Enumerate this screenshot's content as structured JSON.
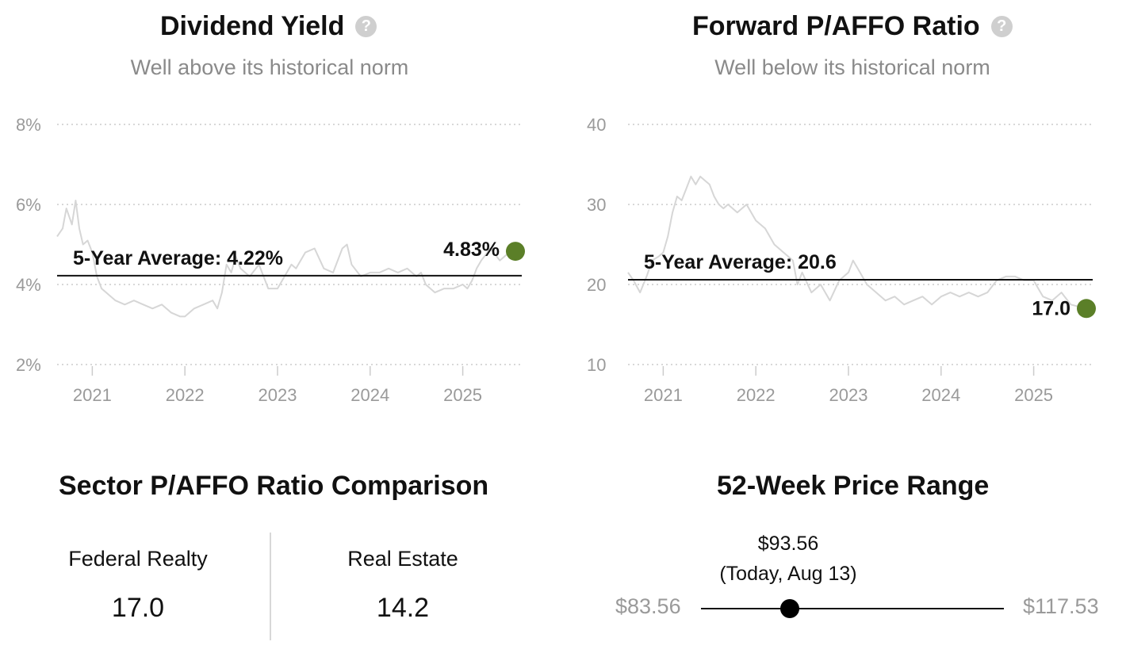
{
  "dividend_panel": {
    "title": "Dividend Yield",
    "subtitle": "Well above its historical norm",
    "help_icon": "question-circle-icon"
  },
  "paffo_panel": {
    "title": "Forward P/AFFO Ratio",
    "subtitle": "Well below its historical norm",
    "help_icon": "question-circle-icon"
  },
  "chart_data": [
    {
      "type": "line",
      "title": "Dividend Yield",
      "y_ticks": [
        "2%",
        "4%",
        "6%",
        "8%"
      ],
      "y_tick_values": [
        2,
        4,
        6,
        8
      ],
      "ylim": [
        2,
        8
      ],
      "x_ticks": [
        "2021",
        "2022",
        "2023",
        "2024",
        "2025"
      ],
      "x_tick_values": [
        2021,
        2022,
        2023,
        2024,
        2025
      ],
      "xlim": [
        2020.62,
        2025.62
      ],
      "grid": true,
      "line_color": "#d6d6d6",
      "avg_color": "#111111",
      "point_color": "#5b7f28",
      "average": {
        "label": "5-Year Average: 4.22%",
        "value": 4.22
      },
      "current": {
        "label": "4.83%",
        "x": 2025.62,
        "value": 4.83
      },
      "series": [
        {
          "x": [
            2020.62,
            2020.68,
            2020.72,
            2020.78,
            2020.82,
            2020.86,
            2020.9,
            2020.95,
            2021.0,
            2021.05,
            2021.1,
            2021.15,
            2021.25,
            2021.35,
            2021.45,
            2021.55,
            2021.65,
            2021.75,
            2021.85,
            2021.95,
            2022.0,
            2022.1,
            2022.2,
            2022.3,
            2022.35,
            2022.4,
            2022.45,
            2022.5,
            2022.55,
            2022.6,
            2022.7,
            2022.8,
            2022.9,
            2023.0,
            2023.1,
            2023.15,
            2023.2,
            2023.3,
            2023.4,
            2023.5,
            2023.6,
            2023.7,
            2023.75,
            2023.8,
            2023.9,
            2024.0,
            2024.1,
            2024.2,
            2024.3,
            2024.4,
            2024.5,
            2024.55,
            2024.6,
            2024.7,
            2024.8,
            2024.9,
            2025.0,
            2025.05,
            2025.1,
            2025.15,
            2025.2,
            2025.3,
            2025.4,
            2025.5,
            2025.62
          ],
          "values": [
            5.2,
            5.4,
            5.9,
            5.5,
            6.1,
            5.4,
            5.0,
            5.1,
            4.8,
            4.2,
            3.9,
            3.8,
            3.6,
            3.5,
            3.6,
            3.5,
            3.4,
            3.5,
            3.3,
            3.2,
            3.2,
            3.4,
            3.5,
            3.6,
            3.4,
            3.8,
            4.5,
            4.3,
            4.7,
            4.4,
            4.2,
            4.5,
            3.9,
            3.9,
            4.3,
            4.5,
            4.4,
            4.8,
            4.9,
            4.4,
            4.3,
            4.9,
            5.0,
            4.5,
            4.2,
            4.3,
            4.3,
            4.4,
            4.3,
            4.4,
            4.2,
            4.3,
            4.0,
            3.8,
            3.9,
            3.9,
            4.0,
            3.9,
            4.1,
            4.4,
            4.6,
            4.9,
            4.6,
            4.8,
            4.83
          ]
        }
      ]
    },
    {
      "type": "line",
      "title": "Forward P/AFFO Ratio",
      "y_ticks": [
        "10",
        "20",
        "30",
        "40"
      ],
      "y_tick_values": [
        10,
        20,
        30,
        40
      ],
      "ylim": [
        10,
        40
      ],
      "x_ticks": [
        "2021",
        "2022",
        "2023",
        "2024",
        "2025"
      ],
      "x_tick_values": [
        2021,
        2022,
        2023,
        2024,
        2025
      ],
      "xlim": [
        2020.62,
        2025.62
      ],
      "grid": true,
      "line_color": "#d6d6d6",
      "avg_color": "#111111",
      "point_color": "#5b7f28",
      "average": {
        "label": "5-Year Average: 20.6",
        "value": 20.6
      },
      "current": {
        "label": "17.0",
        "x": 2025.62,
        "value": 17.0
      },
      "series": [
        {
          "x": [
            2020.62,
            2020.68,
            2020.75,
            2020.82,
            2020.88,
            2020.95,
            2021.0,
            2021.05,
            2021.1,
            2021.15,
            2021.2,
            2021.25,
            2021.3,
            2021.35,
            2021.4,
            2021.45,
            2021.5,
            2021.55,
            2021.6,
            2021.65,
            2021.7,
            2021.8,
            2021.9,
            2022.0,
            2022.1,
            2022.2,
            2022.3,
            2022.4,
            2022.45,
            2022.5,
            2022.6,
            2022.7,
            2022.8,
            2022.9,
            2023.0,
            2023.05,
            2023.1,
            2023.2,
            2023.3,
            2023.4,
            2023.5,
            2023.6,
            2023.7,
            2023.8,
            2023.9,
            2024.0,
            2024.1,
            2024.2,
            2024.3,
            2024.4,
            2024.5,
            2024.6,
            2024.7,
            2024.8,
            2024.9,
            2025.0,
            2025.05,
            2025.1,
            2025.2,
            2025.3,
            2025.4,
            2025.5,
            2025.62
          ],
          "values": [
            21.5,
            20.5,
            19.0,
            21.0,
            23.0,
            23.5,
            24.0,
            26.0,
            29.0,
            31.0,
            30.5,
            32.0,
            33.5,
            32.5,
            33.5,
            33.0,
            32.5,
            31.0,
            30.0,
            29.5,
            30.0,
            29.0,
            30.0,
            28.0,
            27.0,
            25.0,
            24.0,
            23.0,
            20.0,
            21.5,
            19.0,
            20.0,
            18.0,
            20.5,
            21.5,
            23.0,
            22.0,
            20.0,
            19.0,
            18.0,
            18.5,
            17.5,
            18.0,
            18.5,
            17.5,
            18.5,
            19.0,
            18.5,
            19.0,
            18.5,
            19.0,
            20.5,
            21.0,
            21.0,
            20.5,
            20.5,
            19.5,
            18.5,
            18.0,
            19.0,
            17.5,
            17.2,
            17.0
          ]
        }
      ]
    }
  ],
  "sector_comparison": {
    "title": "Sector P/AFFO Ratio Comparison",
    "items": [
      {
        "label": "Federal Realty",
        "value": "17.0"
      },
      {
        "label": "Real Estate",
        "value": "14.2"
      }
    ]
  },
  "price_range": {
    "title": "52-Week Price Range",
    "low": "$83.56",
    "high": "$117.53",
    "current_price": "$93.56",
    "current_caption": "(Today, Aug 13)",
    "low_value": 83.56,
    "high_value": 117.53,
    "current_value": 93.56
  }
}
